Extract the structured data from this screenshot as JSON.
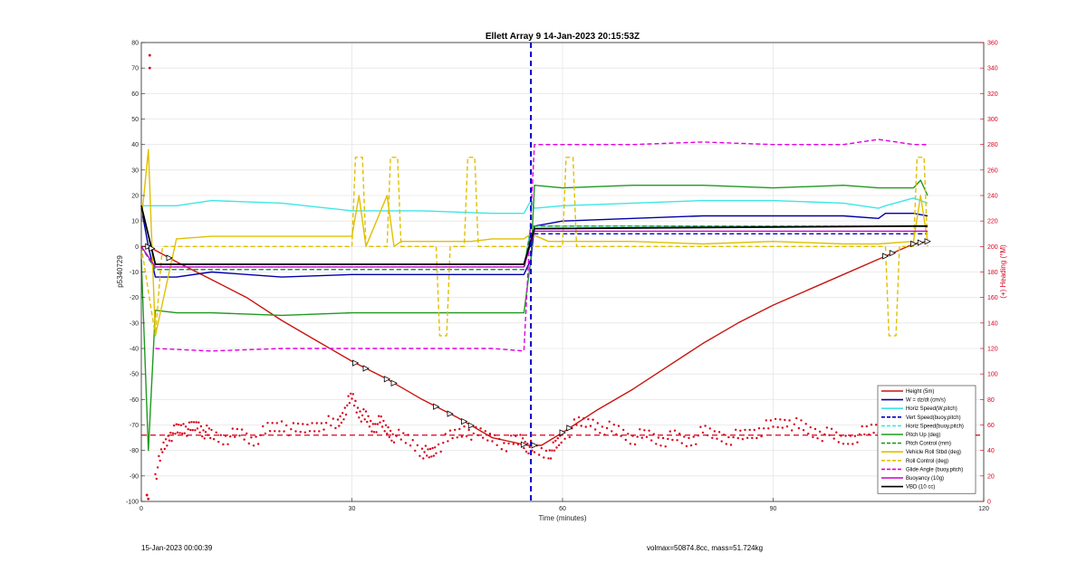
{
  "footer": {
    "left": "15-Jan-2023 00:00:39",
    "right": "volmax=50874.8cc, mass=51.724kg"
  },
  "chart_data": {
    "type": "line",
    "title": "Ellett Array 9 14-Jan-2023 20:15:53Z",
    "xlabel": "Time (minutes)",
    "ylabel": "p5340729",
    "y2label": "(+) Heading (°M)",
    "xlim": [
      0,
      120
    ],
    "ylim": [
      -100,
      80
    ],
    "y2lim": [
      0,
      360
    ],
    "xticks": [
      0,
      30,
      60,
      90,
      120
    ],
    "yticks": [
      -100,
      -90,
      -80,
      -70,
      -60,
      -50,
      -40,
      -30,
      -20,
      -10,
      0,
      10,
      20,
      30,
      40,
      50,
      60,
      70,
      80
    ],
    "y2ticks": [
      0,
      20,
      40,
      60,
      80,
      100,
      120,
      140,
      160,
      180,
      200,
      220,
      240,
      260,
      280,
      300,
      320,
      340,
      360
    ],
    "grid": true,
    "legend_position": "bottom-right",
    "colors": {
      "height": "#c8150f",
      "w": "#0000a8",
      "horiz_w": "#3de6e6",
      "vert_speed": "#0000cc",
      "horiz_buoy": "#3de6e6",
      "pitch": "#1f9a1f",
      "pitch_control": "#1f9a1f",
      "roll": "#e0c000",
      "roll_control": "#e0c000",
      "glide": "#e000e0",
      "buoyancy": "#cc00cc",
      "vbd": "#000000",
      "heading": "#d9001b"
    },
    "series": [
      {
        "name": "Height (5m)",
        "key": "height",
        "style": "solid",
        "x": [
          0,
          1,
          5,
          10,
          15,
          20,
          25,
          30,
          35,
          40,
          45,
          50,
          55,
          57,
          60,
          65,
          70,
          75,
          80,
          85,
          90,
          95,
          100,
          105,
          110,
          112
        ],
        "y": [
          0,
          0,
          -6,
          -13,
          -20,
          -29,
          -37,
          -45,
          -52,
          -60,
          -67,
          -75,
          -78,
          -78,
          -73,
          -64,
          -56,
          -47,
          -38,
          -30,
          -23,
          -17,
          -11,
          -5,
          1,
          2
        ]
      },
      {
        "name": "W = dz/dt (cm/s)",
        "key": "w",
        "style": "solid",
        "x": [
          0,
          1,
          2,
          5,
          10,
          20,
          30,
          40,
          50,
          54.5,
          55.5,
          56,
          60,
          70,
          80,
          90,
          100,
          105,
          106,
          110,
          112
        ],
        "y": [
          15,
          0,
          -12,
          -12,
          -10,
          -12,
          -11,
          -11,
          -11,
          -11,
          -5,
          8,
          10,
          11,
          12,
          12,
          12,
          11,
          13,
          13,
          12
        ]
      },
      {
        "name": "Horiz Speed(W,pitch)",
        "key": "horiz_w",
        "style": "solid",
        "x": [
          0,
          1,
          2,
          5,
          10,
          20,
          30,
          40,
          50,
          54.5,
          55.5,
          56,
          60,
          70,
          80,
          90,
          100,
          105,
          106,
          110,
          112
        ],
        "y": [
          16,
          16,
          16,
          16,
          18,
          17,
          14,
          14,
          13,
          13,
          18,
          15,
          16,
          17,
          18,
          18,
          17,
          15,
          16,
          19,
          17
        ]
      },
      {
        "name": "Vert Speed(buoy,pitch)",
        "key": "vert_speed",
        "style": "dash",
        "x": [
          0,
          2,
          54.5,
          55.5,
          110,
          112
        ],
        "y": [
          0,
          -9,
          -9,
          5,
          5,
          5
        ]
      },
      {
        "name": "Horiz Speed(buoy,pitch)",
        "key": "horiz_buoy",
        "style": "dash",
        "x": [
          0,
          2,
          54.5,
          55.5,
          112
        ],
        "y": [
          0,
          -8,
          -8,
          8,
          8
        ]
      },
      {
        "name": "Pitch Up (deg)",
        "key": "pitch",
        "style": "solid",
        "x": [
          0,
          1,
          2,
          5,
          10,
          20,
          30,
          40,
          50,
          54.5,
          55.5,
          56,
          60,
          70,
          80,
          90,
          100,
          105,
          110,
          111,
          112
        ],
        "y": [
          -5,
          -80,
          -25,
          -26,
          -26,
          -27,
          -26,
          -26,
          -26,
          -26,
          -5,
          24,
          23,
          24,
          24,
          23,
          24,
          23,
          23,
          26,
          20
        ]
      },
      {
        "name": "Pitch Control (mm)",
        "key": "pitch_control",
        "style": "dash",
        "x": [
          0,
          2,
          54.5,
          55.5,
          112
        ],
        "y": [
          0,
          -9,
          -9,
          8,
          8
        ]
      },
      {
        "name": "Vehicle Roll Stbd (deg)",
        "key": "roll",
        "style": "solid",
        "x": [
          0,
          1,
          2,
          5,
          10,
          20,
          30,
          31,
          32,
          35,
          36,
          37,
          40,
          46,
          47,
          50,
          54.5,
          55.5,
          58,
          60,
          70,
          80,
          90,
          100,
          105,
          110,
          111,
          112
        ],
        "y": [
          10,
          38,
          -35,
          3,
          4,
          4,
          4,
          20,
          0,
          20,
          0,
          2,
          2,
          2,
          2,
          3,
          3,
          5,
          2,
          2,
          2,
          1,
          2,
          1,
          1,
          2,
          20,
          2
        ]
      },
      {
        "name": "Roll Control (deg)",
        "key": "roll_control",
        "style": "dash",
        "x": [
          0,
          2,
          3,
          30,
          30.5,
          31.5,
          32,
          35,
          35.5,
          36.5,
          37,
          42,
          42.5,
          43.5,
          44,
          46,
          46.5,
          47.5,
          48,
          54.5,
          55.5,
          60,
          60.5,
          61.5,
          62,
          106,
          106.5,
          107.5,
          108,
          110,
          110.5,
          111.5,
          112
        ],
        "y": [
          0,
          -35,
          0,
          0,
          35,
          35,
          0,
          0,
          35,
          35,
          0,
          0,
          -35,
          -35,
          0,
          0,
          35,
          35,
          0,
          0,
          0,
          0,
          35,
          35,
          0,
          0,
          -35,
          -35,
          0,
          0,
          35,
          35,
          0
        ]
      },
      {
        "name": "Glide Angle (buoy,pitch)",
        "key": "glide",
        "style": "dash",
        "x": [
          2,
          10,
          20,
          30,
          40,
          50,
          54.5,
          56,
          60,
          70,
          80,
          90,
          100,
          105,
          110,
          112
        ],
        "y": [
          -40,
          -41,
          -40,
          -40,
          -40,
          -40,
          -41,
          40,
          40,
          40,
          41,
          40,
          40,
          42,
          40,
          40
        ]
      },
      {
        "name": "Buoyancy (10g)",
        "key": "buoyancy",
        "style": "solid",
        "x": [
          0,
          2,
          54.5,
          56,
          110,
          112
        ],
        "y": [
          0,
          -8,
          -8,
          6,
          6,
          6
        ]
      },
      {
        "name": "VBD (10 cc)",
        "key": "vbd",
        "style": "solid",
        "x": [
          0,
          2,
          54.5,
          56,
          110,
          112
        ],
        "y": [
          16,
          -7,
          -7,
          7,
          8,
          8
        ]
      }
    ],
    "heading": {
      "name": "Heading",
      "mean": 52,
      "x": [
        0.5,
        1.2,
        2,
        3,
        4,
        5,
        6,
        7,
        8,
        9,
        10,
        12,
        14,
        16,
        18,
        20,
        22,
        24,
        26,
        28,
        29,
        30,
        31,
        32,
        33,
        34,
        35,
        36,
        38,
        40,
        41,
        42,
        44,
        46,
        48,
        50,
        52,
        54,
        55,
        56,
        58,
        59,
        60,
        62,
        64,
        66,
        68,
        70,
        72,
        74,
        76,
        78,
        80,
        82,
        84,
        86,
        88,
        90,
        92,
        94,
        96,
        98,
        100,
        102,
        104,
        106,
        108,
        110,
        112
      ],
      "y": [
        5,
        350,
        20,
        40,
        52,
        55,
        58,
        56,
        60,
        55,
        52,
        50,
        53,
        48,
        56,
        60,
        55,
        58,
        62,
        60,
        72,
        82,
        70,
        65,
        58,
        62,
        56,
        52,
        48,
        40,
        36,
        42,
        50,
        56,
        52,
        50,
        45,
        48,
        44,
        40,
        38,
        42,
        52,
        60,
        62,
        58,
        55,
        50,
        52,
        48,
        50,
        47,
        54,
        52,
        50,
        52,
        56,
        60,
        63,
        58,
        54,
        52,
        48,
        52,
        56,
        60,
        65,
        70,
        72
      ]
    }
  }
}
